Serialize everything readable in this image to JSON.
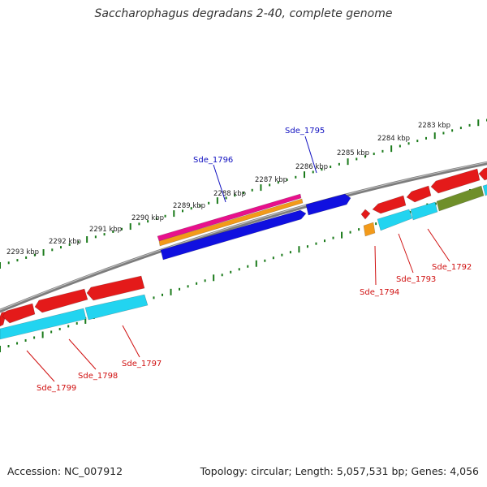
{
  "title": "Saccharophagus degradans 2-40, complete genome",
  "footer": {
    "accession": "Accession: NC_007912",
    "stats": "Topology: circular; Length: 5,057,531 bp; Genes: 4,056"
  },
  "colors": {
    "backbone": "#7d7d7d",
    "tick": "#1a7a1a",
    "forward_label": "#1010c0",
    "reverse_label": "#d01010",
    "red": "#e41a1a",
    "blue": "#1010e0",
    "cyan": "#22d4f0",
    "magenta": "#e8108c",
    "orange": "#f39a1a",
    "olive": "#6f8f2a"
  },
  "kbp_labels": [
    "2283 kbp",
    "2284 kbp",
    "2285 kbp",
    "2286 kbp",
    "2287 kbp",
    "2288 kbp",
    "2289 kbp",
    "2290 kbp",
    "2291 kbp",
    "2292 kbp",
    "2293 kbp"
  ],
  "gene_labels": {
    "forward": [
      "Sde_1795",
      "Sde_1796"
    ],
    "reverse": [
      "Sde_1792",
      "Sde_1793",
      "Sde_1794",
      "Sde_1797",
      "Sde_1798",
      "Sde_1799"
    ]
  }
}
